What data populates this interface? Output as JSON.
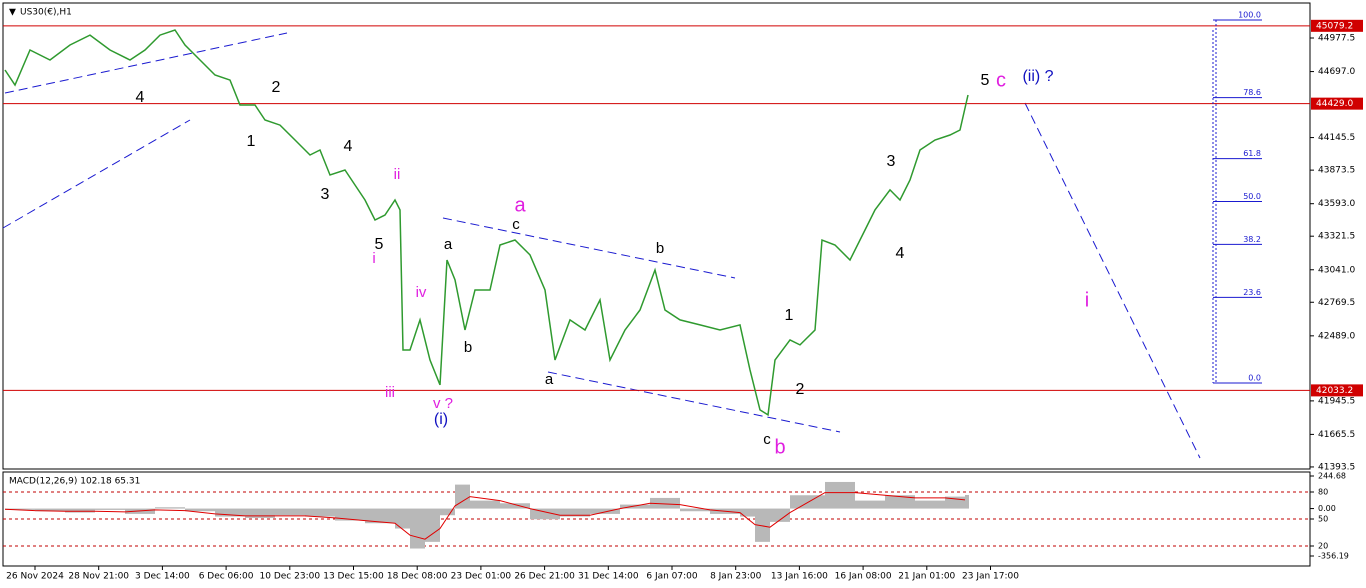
{
  "chart_data": {
    "type": "line",
    "title": "US30(€),H1",
    "x_labels": [
      "26 Nov 2024",
      "28 Nov 21:00",
      "3 Dec 14:00",
      "6 Dec 06:00",
      "10 Dec 23:00",
      "13 Dec 15:00",
      "18 Dec 08:00",
      "23 Dec 01:00",
      "26 Dec 21:00",
      "31 Dec 14:00",
      "6 Jan 07:00",
      "8 Jan 23:00",
      "13 Jan 16:00",
      "16 Jan 08:00",
      "21 Jan 01:00",
      "23 Jan 17:00"
    ],
    "series": [
      {
        "name": "US30",
        "color": "#2f9a2f",
        "values": [
          44710,
          44585,
          44877,
          44794,
          44919,
          45002,
          44877,
          44794,
          44877,
          45002,
          45044,
          44919,
          44794,
          44668,
          44626,
          44418,
          44418,
          44292,
          44250,
          44125,
          44000,
          44042,
          43833,
          43875,
          43749,
          43624,
          43457,
          43499,
          43624,
          43541,
          42371,
          42371,
          42622,
          42287,
          42079,
          43123,
          42956,
          42538,
          42872,
          42872,
          43248,
          43290,
          43165,
          42872,
          42287,
          42622,
          42538,
          42789,
          42287,
          42538,
          42705,
          43039,
          42705,
          42622,
          42580,
          42538,
          42580,
          42204,
          41870,
          41828,
          42287,
          42455,
          42413,
          42538,
          43290,
          43248,
          43123,
          43373,
          43541,
          43708,
          43624,
          43791,
          44042,
          44125,
          44167,
          44209,
          44501
        ]
      }
    ],
    "ylim": [
      41368,
      45295
    ],
    "yticks": [
      44977.5,
      {
        "value": 44697,
        "label": "44697.0"
      },
      44145.5,
      43873.5,
      {
        "value": 43593,
        "label": "43593.0"
      },
      43321.5,
      {
        "value": 43041,
        "label": "43041.0"
      },
      42769.5,
      {
        "value": 42489,
        "label": "42489.0"
      },
      41945.5,
      41665.5,
      41393.5
    ],
    "levels": [
      45079.2,
      {
        "value": 44429,
        "label": "44429.0"
      },
      42033.2
    ],
    "level_color": "#d00000",
    "fib_levels": [
      {
        "value": 100,
        "label": "100.0"
      },
      78.6,
      61.8,
      {
        "value": 50,
        "label": "50.0"
      },
      38.2,
      23.6,
      {
        "value": 0,
        "label": "0.0"
      }
    ],
    "fib_color": "#1a1ad0",
    "annotations": [
      {
        "text": "4",
        "color": "#000000"
      },
      {
        "text": "2",
        "color": "#000000"
      },
      {
        "text": "1",
        "color": "#000000"
      },
      {
        "text": "4",
        "color": "#000000"
      },
      {
        "text": "3",
        "color": "#000000"
      },
      {
        "text": "5",
        "color": "#000000"
      },
      {
        "text": "ii",
        "color": "#e020e0"
      },
      {
        "text": "i",
        "color": "#e020e0"
      },
      {
        "text": "iv",
        "color": "#e020e0"
      },
      {
        "text": "iii",
        "color": "#e020e0"
      },
      {
        "text": "v ?",
        "color": "#e020e0"
      },
      {
        "text": "(i)",
        "color": "#1010c0"
      },
      {
        "text": "a",
        "color": "#000000"
      },
      {
        "text": "b",
        "color": "#000000"
      },
      {
        "text": "c",
        "color": "#000000"
      },
      {
        "text": "a",
        "color": "#e020e0"
      },
      {
        "text": "b",
        "color": "#000000"
      },
      {
        "text": "a",
        "color": "#000000"
      },
      {
        "text": "c",
        "color": "#000000"
      },
      {
        "text": "b",
        "color": "#e020e0"
      },
      {
        "text": "1",
        "color": "#000000"
      },
      {
        "text": "2",
        "color": "#000000"
      },
      {
        "text": "3",
        "color": "#000000"
      },
      {
        "text": "4",
        "color": "#000000"
      },
      {
        "text": "5",
        "color": "#000000"
      },
      {
        "text": "c",
        "color": "#e020e0"
      },
      {
        "text": "(ii) ?",
        "color": "#1010c0"
      },
      {
        "text": "i",
        "color": "#e020e0"
      }
    ],
    "macd": {
      "title": "MACD(12,26,9) 102.18 65.31",
      "ylim": [
        -356.19,
        244.68
      ],
      "yticks": [
        244.68,
        80,
        {
          "value": 0,
          "label": "0.00"
        },
        50,
        20,
        -356.19
      ],
      "main": {
        "color": "#b8b8b8",
        "values": [
          -10,
          -20,
          -30,
          -10,
          -40,
          10,
          -20,
          -60,
          -70,
          -50,
          -60,
          -90,
          -110,
          -150,
          -300,
          -250,
          -50,
          180,
          60,
          40,
          -80,
          -60,
          -40,
          30,
          80,
          -20,
          -40,
          -60,
          -250,
          -100,
          100,
          200,
          60,
          100,
          60,
          90,
          102.18
        ]
      },
      "signal": {
        "color": "#e00000",
        "values": [
          -5,
          -15,
          -20,
          -20,
          -25,
          -10,
          -15,
          -40,
          -55,
          -55,
          -55,
          -70,
          -90,
          -110,
          -200,
          -230,
          -150,
          20,
          90,
          60,
          0,
          -50,
          -50,
          0,
          40,
          30,
          -10,
          -30,
          -120,
          -140,
          -30,
          120,
          120,
          100,
          80,
          80,
          65.31
        ]
      }
    }
  }
}
